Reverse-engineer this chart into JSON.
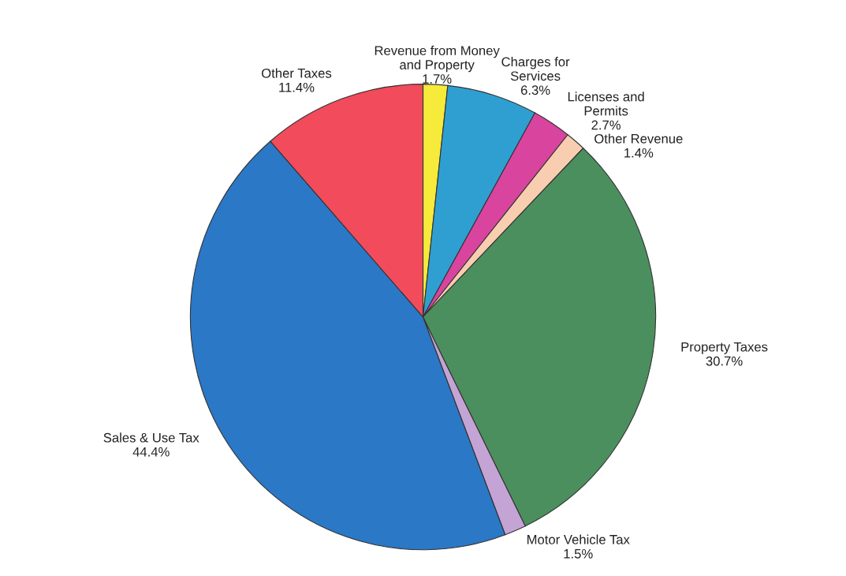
{
  "chart_data": {
    "type": "pie",
    "categories": [
      "Revenue from Money and Property",
      "Charges for Services",
      "Licenses and Permits",
      "Other Revenue",
      "Property Taxes",
      "Motor Vehicle Tax",
      "Sales & Use Tax",
      "Other Taxes"
    ],
    "values": [
      1.7,
      6.3,
      2.7,
      1.4,
      30.7,
      1.5,
      44.4,
      11.4
    ],
    "value_labels": [
      "1.7%",
      "6.3%",
      "2.7%",
      "1.4%",
      "30.7%",
      "1.5%",
      "44.4%",
      "11.4%"
    ],
    "colors": [
      "#f6ea3a",
      "#2f9fd2",
      "#d9449f",
      "#f9cdb0",
      "#4c8f5e",
      "#c4a4d4",
      "#2b78c6",
      "#f24b5c"
    ]
  }
}
